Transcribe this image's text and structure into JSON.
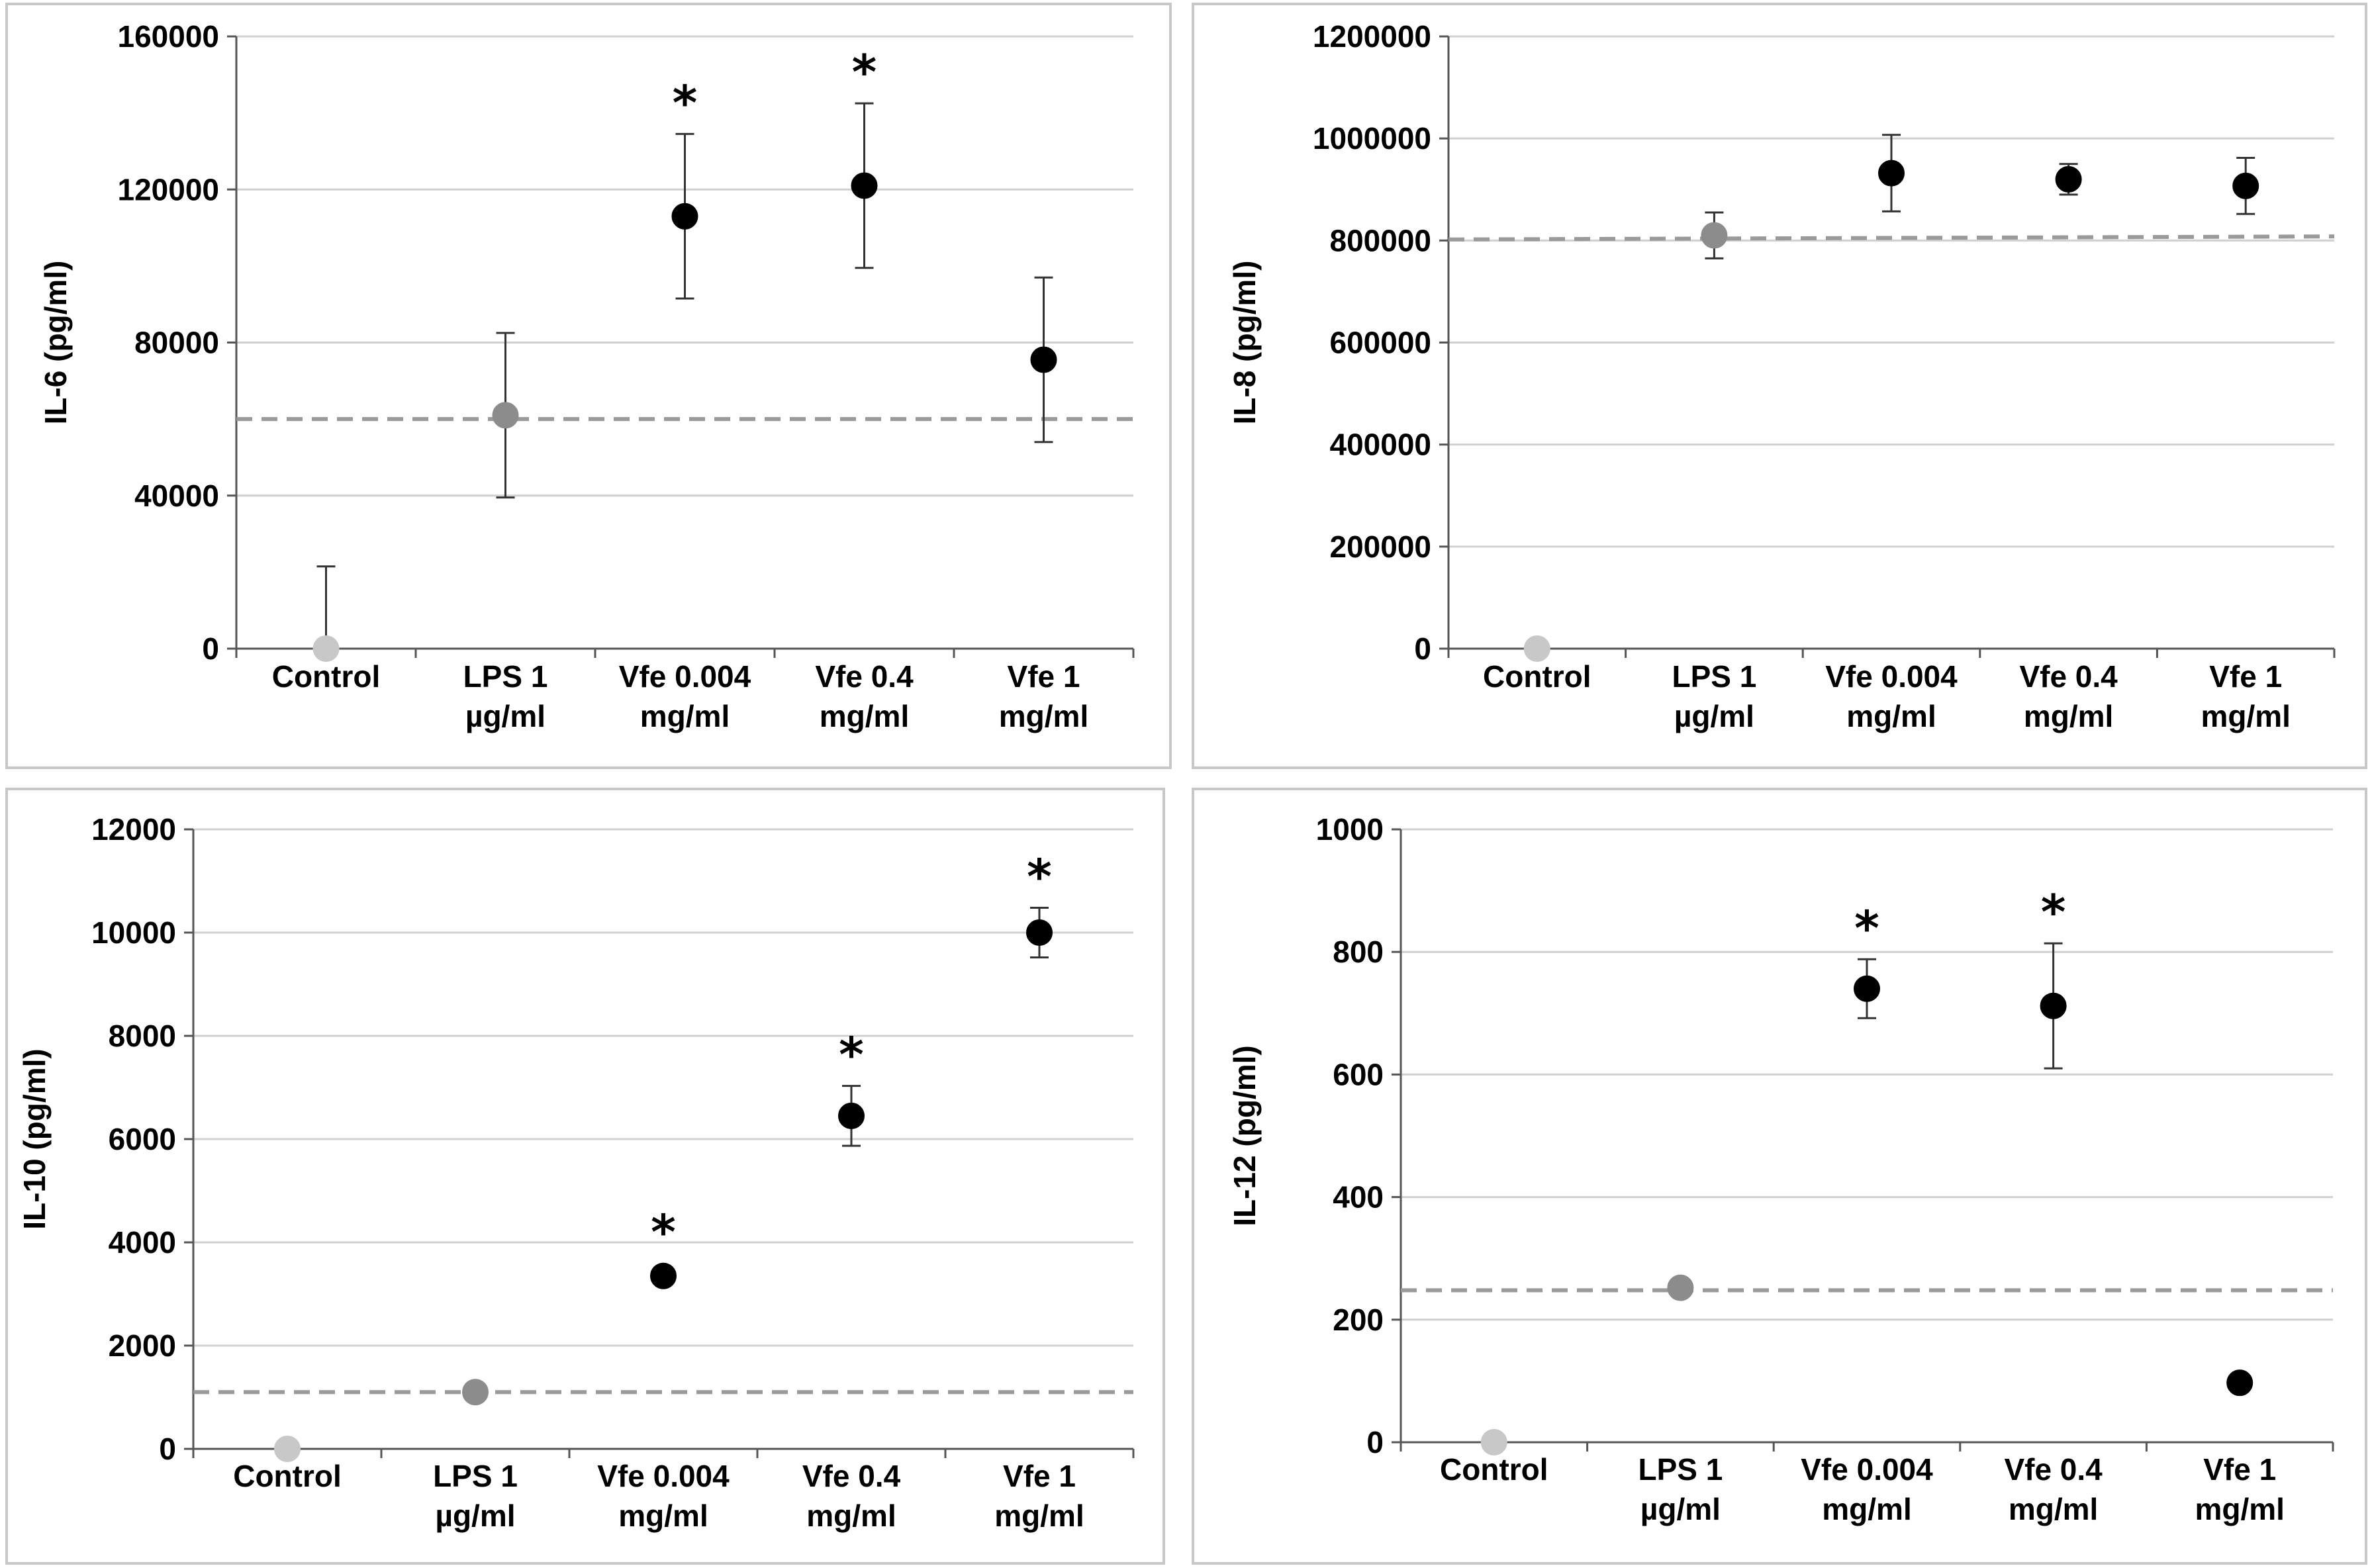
{
  "colors": {
    "background": "#ffffff",
    "panel_border": "#c8c8c8",
    "gridline": "#d0d0d0",
    "axis": "#555555",
    "reference_line": "#9a9a9a",
    "control_point": "#c8c8c8",
    "lps_point": "#8c8c8c",
    "treatment_point": "#000000"
  },
  "chart_data": [
    {
      "type": "scatter",
      "ylabel": "IL-6 (pg/ml)",
      "xlabel": "",
      "categories": [
        [
          "Control"
        ],
        [
          "LPS 1",
          "µg/ml"
        ],
        [
          "Vfe 0.004",
          "mg/ml"
        ],
        [
          "Vfe 0.4",
          "mg/ml"
        ],
        [
          "Vfe 1",
          "mg/ml"
        ]
      ],
      "ylim": [
        0,
        160000
      ],
      "yticks": [
        0,
        40000,
        80000,
        120000,
        160000
      ],
      "ytick_labels": [
        "0",
        "40000",
        "80000",
        "120000",
        "160000"
      ],
      "grid": true,
      "series": [
        {
          "name": "IL-6",
          "values": [
            0,
            61000,
            113000,
            121000,
            75500
          ],
          "error": [
            21500,
            21500,
            21500,
            21500,
            21500
          ],
          "point_colors": [
            "control",
            "lps",
            "treatment",
            "treatment",
            "treatment"
          ]
        }
      ],
      "significant": [
        false,
        false,
        true,
        true,
        false
      ],
      "significance_marker": "*",
      "reference_line": 60000
    },
    {
      "type": "scatter",
      "ylabel": "IL-8 (pg/ml)",
      "xlabel": "",
      "categories": [
        [
          "Control"
        ],
        [
          "LPS 1",
          "µg/ml"
        ],
        [
          "Vfe 0.004",
          "mg/ml"
        ],
        [
          "Vfe 0.4",
          "mg/ml"
        ],
        [
          "Vfe 1",
          "mg/ml"
        ]
      ],
      "ylim": [
        0,
        1200000
      ],
      "yticks": [
        0,
        200000,
        400000,
        600000,
        800000,
        1000000,
        1200000
      ],
      "ytick_labels": [
        "0",
        "200000",
        "400000",
        "600000",
        "800000",
        "1000000",
        "1200000"
      ],
      "grid": true,
      "series": [
        {
          "name": "IL-8",
          "values": [
            0,
            810000,
            932000,
            920000,
            907000
          ],
          "error": [
            0,
            45000,
            75000,
            30000,
            55000
          ],
          "point_colors": [
            "control",
            "lps",
            "treatment",
            "treatment",
            "treatment"
          ]
        }
      ],
      "significant": [
        false,
        false,
        false,
        false,
        false
      ],
      "significance_marker": "*",
      "reference_line": 802000,
      "reference_line_end": 808000
    },
    {
      "type": "scatter",
      "ylabel": "IL-10 (pg/ml)",
      "xlabel": "",
      "categories": [
        [
          "Control"
        ],
        [
          "LPS 1",
          "µg/ml"
        ],
        [
          "Vfe 0.004",
          "mg/ml"
        ],
        [
          "Vfe 0.4",
          "mg/ml"
        ],
        [
          "Vfe 1",
          "mg/ml"
        ]
      ],
      "ylim": [
        0,
        12000
      ],
      "yticks": [
        0,
        2000,
        4000,
        6000,
        8000,
        10000,
        12000
      ],
      "ytick_labels": [
        "0",
        "2000",
        "4000",
        "6000",
        "8000",
        "10000",
        "12000"
      ],
      "grid": true,
      "series": [
        {
          "name": "IL-10",
          "values": [
            0,
            1100,
            3350,
            6450,
            10000
          ],
          "error": [
            0,
            0,
            0,
            580,
            480
          ],
          "point_colors": [
            "control",
            "lps",
            "treatment",
            "treatment",
            "treatment"
          ]
        }
      ],
      "significant": [
        false,
        false,
        true,
        true,
        true
      ],
      "significance_marker": "*",
      "reference_line": 1100
    },
    {
      "type": "scatter",
      "ylabel": "IL-12 (pg/ml)",
      "xlabel": "",
      "categories": [
        [
          "Control"
        ],
        [
          "LPS 1",
          "µg/ml"
        ],
        [
          "Vfe 0.004",
          "mg/ml"
        ],
        [
          "Vfe 0.4",
          "mg/ml"
        ],
        [
          "Vfe 1",
          "mg/ml"
        ]
      ],
      "ylim": [
        0,
        1000
      ],
      "yticks": [
        0,
        200,
        400,
        600,
        800,
        1000
      ],
      "ytick_labels": [
        "0",
        "200",
        "400",
        "600",
        "800",
        "1000"
      ],
      "grid": true,
      "series": [
        {
          "name": "IL-12",
          "values": [
            0,
            252,
            740,
            712,
            97
          ],
          "error": [
            0,
            0,
            48,
            102,
            0
          ],
          "point_colors": [
            "control",
            "lps",
            "treatment",
            "treatment",
            "treatment"
          ]
        }
      ],
      "significant": [
        false,
        false,
        true,
        true,
        false
      ],
      "significance_marker": "*",
      "reference_line": 248
    }
  ]
}
